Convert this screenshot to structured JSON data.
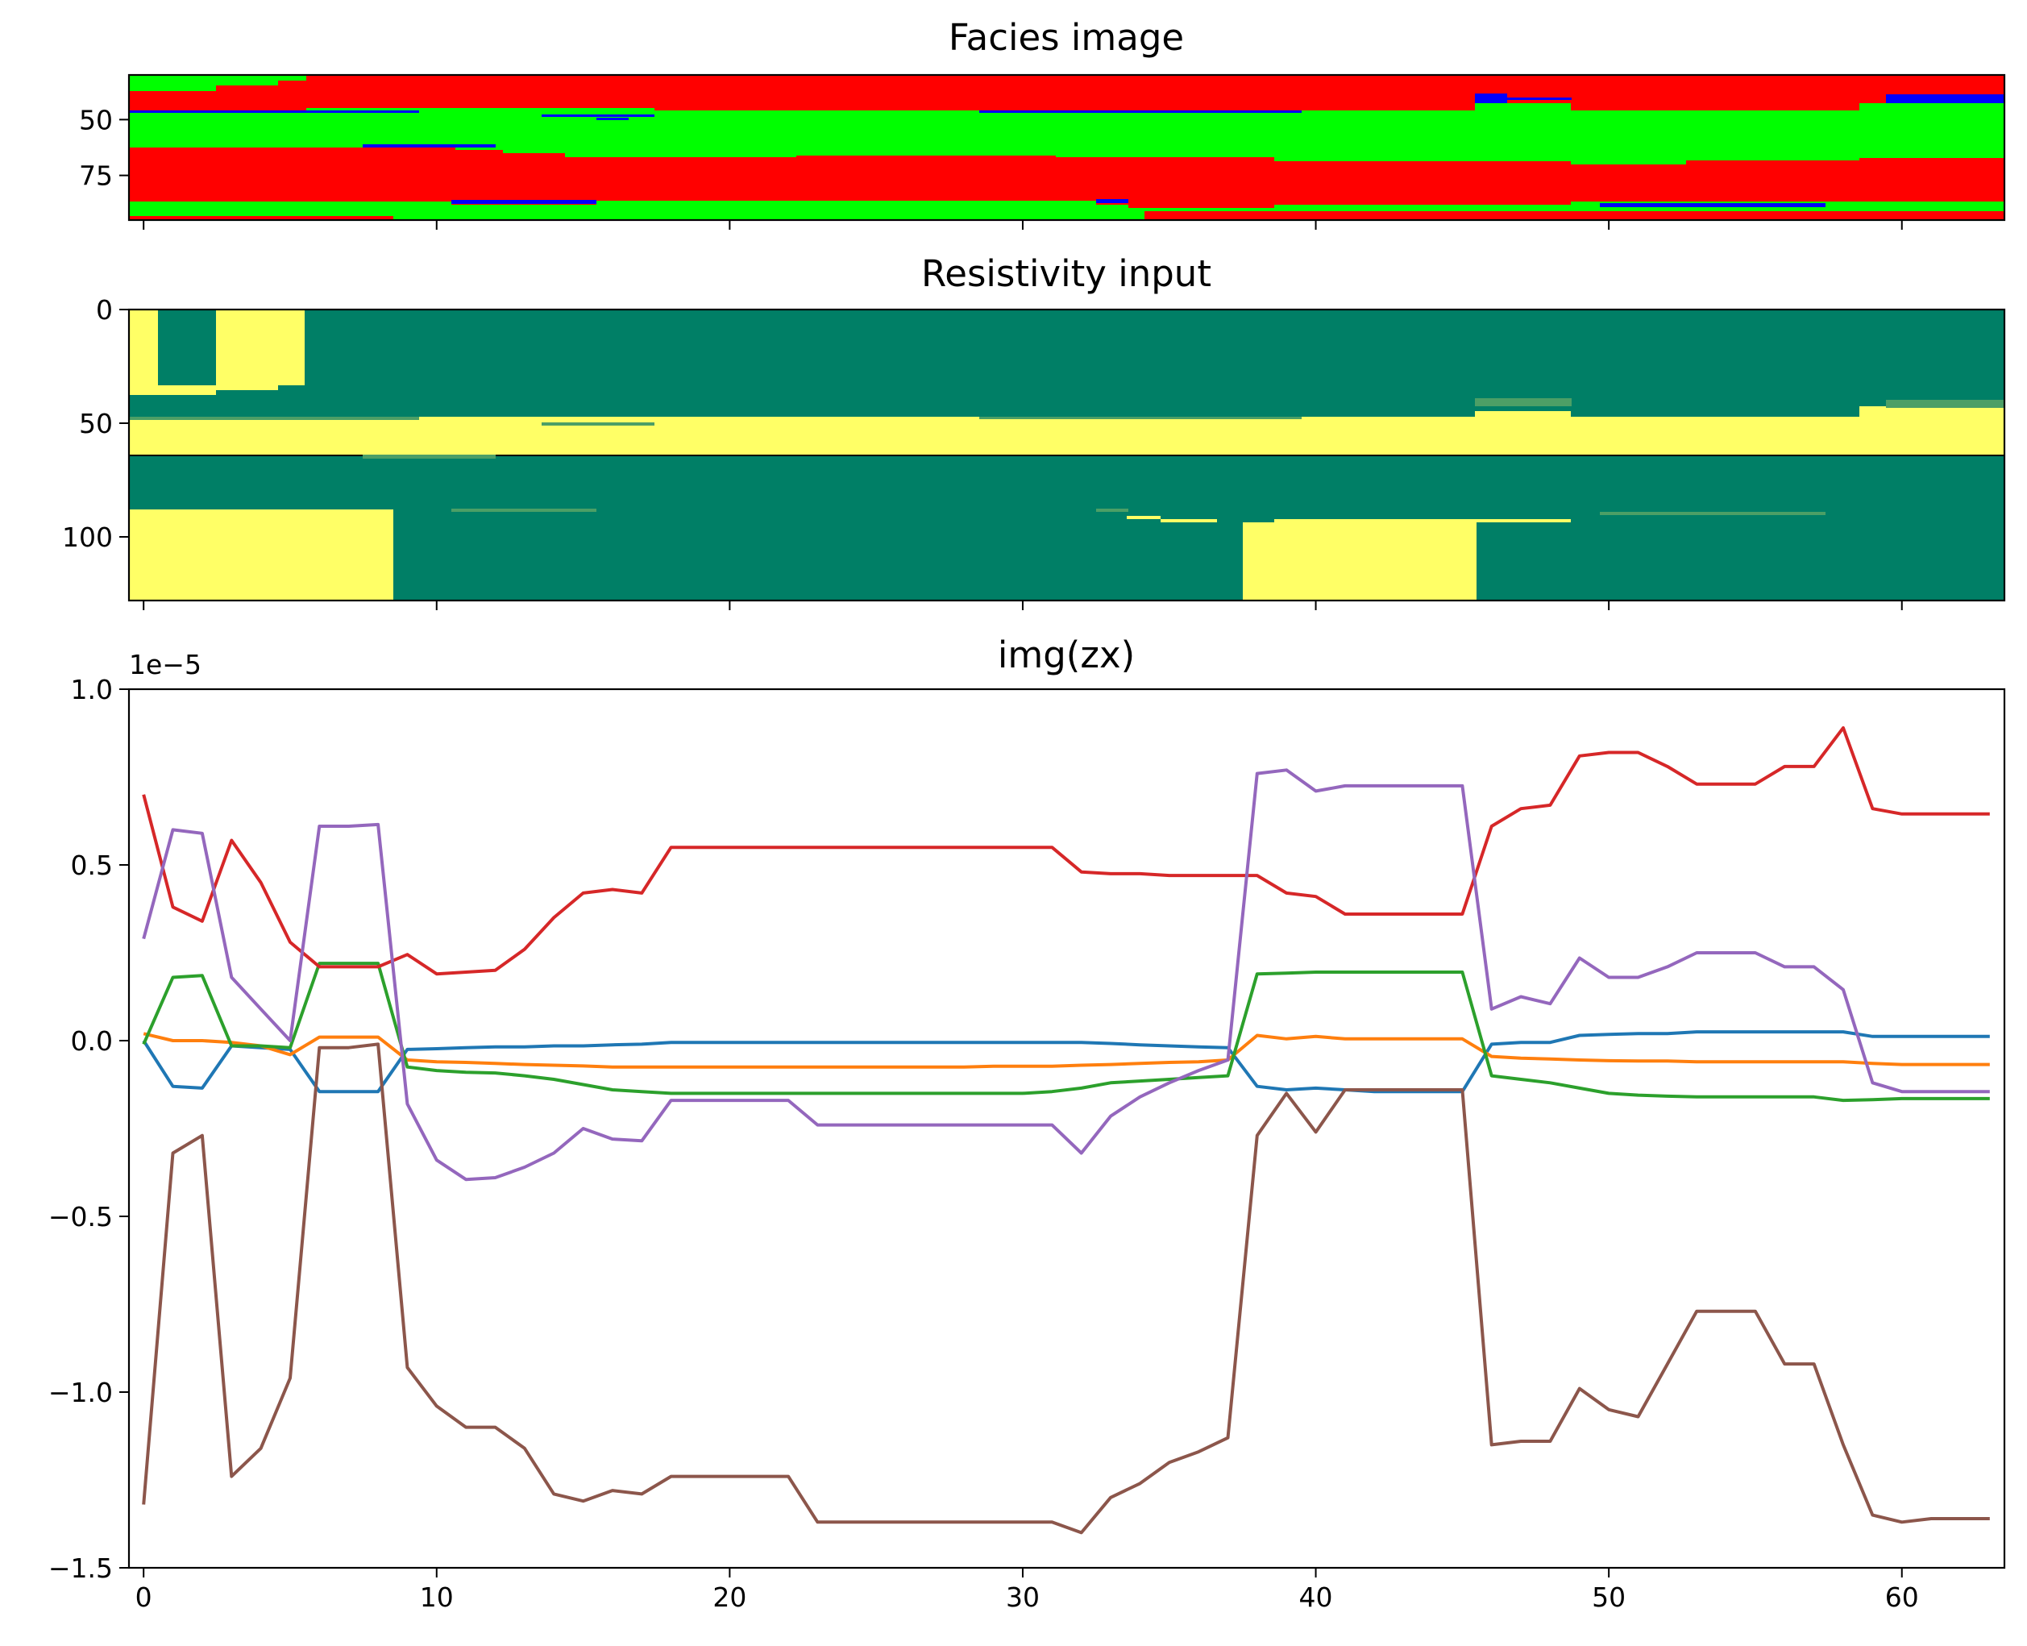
{
  "chart_data": [
    {
      "type": "heatmap",
      "title": "Facies image",
      "xlim": [
        -0.5,
        63.5
      ],
      "ylim": [
        95,
        30
      ],
      "yticks": [
        50,
        75
      ],
      "xticks": [
        0,
        10,
        20,
        30,
        40,
        50,
        60
      ],
      "categories": [
        "red",
        "green",
        "blue"
      ],
      "colors": {
        "red": "#ff0000",
        "green": "#00ff00",
        "blue": "#0000ff"
      }
    },
    {
      "type": "heatmap",
      "title": "Resistivity input",
      "xlim": [
        -0.5,
        63.5
      ],
      "ylim": [
        128,
        0
      ],
      "yticks": [
        0,
        50,
        100
      ],
      "xticks": [
        0,
        10,
        20,
        30,
        40,
        50,
        60
      ],
      "colors": {
        "high": "#ffff66",
        "low": "#007f66",
        "mid": "#4c9f66"
      }
    },
    {
      "type": "line",
      "title": "img(zx)",
      "offset_label": "1e−5",
      "xlim": [
        -0.5,
        63.5
      ],
      "ylim": [
        -1.5,
        1.0
      ],
      "yticks": [
        1.0,
        0.5,
        0.0,
        -0.5,
        -1.0,
        -1.5
      ],
      "ytick_labels": [
        "1.0",
        "0.5",
        "0.0",
        "−0.5",
        "−1.0",
        "−1.5"
      ],
      "xticks": [
        0,
        10,
        20,
        30,
        40,
        50,
        60
      ],
      "x": [
        0,
        1,
        2,
        3,
        4,
        5,
        6,
        7,
        8,
        9,
        10,
        11,
        12,
        13,
        14,
        15,
        16,
        17,
        18,
        19,
        20,
        21,
        22,
        23,
        24,
        25,
        26,
        27,
        28,
        29,
        30,
        31,
        32,
        33,
        34,
        35,
        36,
        37,
        38,
        39,
        40,
        41,
        42,
        43,
        44,
        45,
        46,
        47,
        48,
        49,
        50,
        51,
        52,
        53,
        54,
        55,
        56,
        57,
        58,
        59,
        60,
        61,
        62,
        63
      ],
      "series": [
        {
          "color": "#1f77b4",
          "values": [
            0.0,
            -0.13,
            -0.135,
            -0.015,
            -0.02,
            -0.025,
            -0.145,
            -0.145,
            -0.145,
            -0.025,
            -0.023,
            -0.02,
            -0.018,
            -0.018,
            -0.015,
            -0.015,
            -0.012,
            -0.01,
            -0.005,
            -0.005,
            -0.005,
            -0.005,
            -0.005,
            -0.005,
            -0.005,
            -0.005,
            -0.005,
            -0.005,
            -0.005,
            -0.005,
            -0.005,
            -0.005,
            -0.005,
            -0.008,
            -0.012,
            -0.015,
            -0.018,
            -0.02,
            -0.13,
            -0.14,
            -0.135,
            -0.14,
            -0.145,
            -0.145,
            -0.145,
            -0.145,
            -0.01,
            -0.005,
            -0.005,
            0.015,
            0.018,
            0.02,
            0.02,
            0.025,
            0.025,
            0.025,
            0.025,
            0.025,
            0.025,
            0.012,
            0.012,
            0.012,
            0.012,
            0.012
          ]
        },
        {
          "color": "#ff7f0e",
          "values": [
            0.02,
            0.0,
            0.0,
            -0.005,
            -0.015,
            -0.04,
            0.01,
            0.01,
            0.01,
            -0.055,
            -0.06,
            -0.062,
            -0.065,
            -0.068,
            -0.07,
            -0.072,
            -0.075,
            -0.075,
            -0.075,
            -0.075,
            -0.075,
            -0.075,
            -0.075,
            -0.075,
            -0.075,
            -0.075,
            -0.075,
            -0.075,
            -0.075,
            -0.073,
            -0.073,
            -0.073,
            -0.07,
            -0.068,
            -0.065,
            -0.062,
            -0.06,
            -0.055,
            0.015,
            0.005,
            0.012,
            0.005,
            0.005,
            0.005,
            0.005,
            0.005,
            -0.045,
            -0.05,
            -0.052,
            -0.055,
            -0.057,
            -0.058,
            -0.058,
            -0.06,
            -0.06,
            -0.06,
            -0.06,
            -0.06,
            -0.06,
            -0.065,
            -0.068,
            -0.068,
            -0.068,
            -0.068
          ]
        },
        {
          "color": "#2ca02c",
          "values": [
            -0.01,
            0.18,
            0.185,
            -0.015,
            -0.015,
            -0.02,
            0.22,
            0.22,
            0.22,
            -0.075,
            -0.085,
            -0.09,
            -0.092,
            -0.1,
            -0.11,
            -0.125,
            -0.14,
            -0.145,
            -0.15,
            -0.15,
            -0.15,
            -0.15,
            -0.15,
            -0.15,
            -0.15,
            -0.15,
            -0.15,
            -0.15,
            -0.15,
            -0.15,
            -0.15,
            -0.145,
            -0.135,
            -0.12,
            -0.115,
            -0.11,
            -0.105,
            -0.1,
            0.19,
            0.192,
            0.195,
            0.195,
            0.195,
            0.195,
            0.195,
            0.195,
            -0.1,
            -0.11,
            -0.12,
            -0.135,
            -0.15,
            -0.155,
            -0.158,
            -0.16,
            -0.16,
            -0.16,
            -0.16,
            -0.16,
            -0.17,
            -0.168,
            -0.165,
            -0.165,
            -0.165,
            -0.165
          ]
        },
        {
          "color": "#d62728",
          "values": [
            0.7,
            0.38,
            0.34,
            0.57,
            0.45,
            0.28,
            0.21,
            0.21,
            0.21,
            0.245,
            0.19,
            0.195,
            0.2,
            0.26,
            0.35,
            0.42,
            0.43,
            0.42,
            0.55,
            0.55,
            0.55,
            0.55,
            0.55,
            0.55,
            0.55,
            0.55,
            0.55,
            0.55,
            0.55,
            0.55,
            0.55,
            0.55,
            0.48,
            0.475,
            0.475,
            0.47,
            0.47,
            0.47,
            0.47,
            0.42,
            0.41,
            0.36,
            0.36,
            0.36,
            0.36,
            0.36,
            0.61,
            0.66,
            0.67,
            0.81,
            0.82,
            0.82,
            0.78,
            0.73,
            0.73,
            0.73,
            0.78,
            0.78,
            0.89,
            0.66,
            0.645,
            0.645,
            0.645,
            0.645
          ]
        },
        {
          "color": "#9467bd",
          "values": [
            0.29,
            0.6,
            0.59,
            0.18,
            0.09,
            0.0,
            0.61,
            0.61,
            0.615,
            -0.18,
            -0.34,
            -0.395,
            -0.39,
            -0.36,
            -0.32,
            -0.25,
            -0.28,
            -0.285,
            -0.17,
            -0.17,
            -0.17,
            -0.17,
            -0.17,
            -0.24,
            -0.24,
            -0.24,
            -0.24,
            -0.24,
            -0.24,
            -0.24,
            -0.24,
            -0.24,
            -0.32,
            -0.215,
            -0.16,
            -0.12,
            -0.085,
            -0.055,
            0.76,
            0.77,
            0.71,
            0.725,
            0.725,
            0.725,
            0.725,
            0.725,
            0.09,
            0.125,
            0.105,
            0.235,
            0.18,
            0.18,
            0.21,
            0.25,
            0.25,
            0.25,
            0.21,
            0.21,
            0.145,
            -0.12,
            -0.145,
            -0.145,
            -0.145,
            -0.145
          ]
        },
        {
          "color": "#8c564b",
          "values": [
            -1.32,
            -0.32,
            -0.27,
            -1.24,
            -1.16,
            -0.96,
            -0.02,
            -0.02,
            -0.01,
            -0.93,
            -1.04,
            -1.1,
            -1.1,
            -1.16,
            -1.29,
            -1.31,
            -1.28,
            -1.29,
            -1.24,
            -1.24,
            -1.24,
            -1.24,
            -1.24,
            -1.37,
            -1.37,
            -1.37,
            -1.37,
            -1.37,
            -1.37,
            -1.37,
            -1.37,
            -1.37,
            -1.4,
            -1.3,
            -1.26,
            -1.2,
            -1.17,
            -1.13,
            -0.27,
            -0.15,
            -0.26,
            -0.14,
            -0.14,
            -0.14,
            -0.14,
            -0.14,
            -1.15,
            -1.14,
            -1.14,
            -0.99,
            -1.05,
            -1.07,
            -0.92,
            -0.77,
            -0.77,
            -0.77,
            -0.92,
            -0.92,
            -1.15,
            -1.35,
            -1.37,
            -1.36,
            -1.36,
            -1.36
          ]
        }
      ]
    }
  ]
}
